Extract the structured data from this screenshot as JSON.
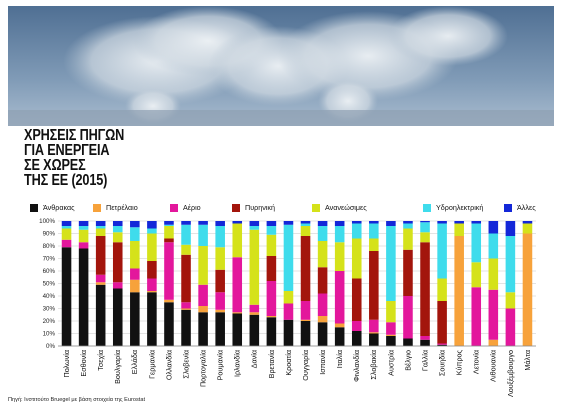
{
  "title": {
    "lines": [
      "ΧΡΗΣΕΙΣ ΠΗΓΩΝ",
      "ΓΙΑ ΕΝΕΡΓΕΙΑ",
      "ΣΕ ΧΩΡΕΣ",
      "ΤΗΣ ΕΕ (2015)"
    ]
  },
  "source": "Πηγή: Ινστιτούτο Bruegel με βάση στοιχεία της Eurostat",
  "photo": {
    "subject": "power-plant-smoke-stacks",
    "sky_color": "#5f7f9f"
  },
  "chart_data": {
    "type": "bar",
    "stacked": true,
    "ylim": [
      0,
      100
    ],
    "y_ticks": [
      "0%",
      "10%",
      "20%",
      "30%",
      "40%",
      "50%",
      "60%",
      "70%",
      "80%",
      "90%",
      "100%"
    ],
    "grid": true,
    "legend_position": "top",
    "categories": [
      "Πολωνία",
      "Εσθονία",
      "Τσεχία",
      "Βουλγαρία",
      "Ελλάδα",
      "Γερμανία",
      "Ολλανδία",
      "Σλοβενία",
      "Πορτογαλία",
      "Ρουμανία",
      "Ιρλανδία",
      "Δανία",
      "Βρετανία",
      "Κροατία",
      "Ουγγαρία",
      "Ισπανία",
      "Ιταλία",
      "Φινλανδία",
      "Σλοβακία",
      "Αυστρία",
      "Βέλγιο",
      "Γαλλία",
      "Σουηδία",
      "Κύπρος",
      "Λετονία",
      "Λιθουανία",
      "Λουξέμβουργο",
      "Μάλτα"
    ],
    "series": [
      {
        "name": "Άνθρακας",
        "color": "#111111",
        "values": [
          79,
          78,
          49,
          46,
          43,
          43,
          35,
          29,
          27,
          27,
          26,
          25,
          23,
          21,
          20,
          19,
          15,
          12,
          10,
          8,
          6,
          5,
          1,
          0,
          0,
          0,
          0,
          0
        ]
      },
      {
        "name": "Πετρέλαιο",
        "color": "#f7a23b",
        "values": [
          0,
          0,
          2,
          0,
          10,
          1,
          2,
          1,
          5,
          2,
          1,
          2,
          1,
          0,
          1,
          5,
          3,
          0,
          1,
          1,
          0,
          0,
          0,
          88,
          0,
          5,
          0,
          90
        ]
      },
      {
        "name": "Αέριο",
        "color": "#e3179c",
        "values": [
          6,
          5,
          6,
          5,
          9,
          10,
          46,
          5,
          17,
          14,
          44,
          6,
          28,
          13,
          15,
          18,
          42,
          8,
          10,
          10,
          34,
          3,
          1,
          0,
          47,
          40,
          30,
          0
        ]
      },
      {
        "name": "Πυρηνική",
        "color": "#a3150c",
        "values": [
          0,
          0,
          31,
          32,
          0,
          14,
          3,
          38,
          0,
          18,
          0,
          0,
          20,
          0,
          52,
          21,
          0,
          34,
          55,
          0,
          37,
          75,
          34,
          0,
          0,
          0,
          0,
          0
        ]
      },
      {
        "name": "Ανανεώσιμες",
        "color": "#d5e21a",
        "values": [
          9,
          10,
          6,
          8,
          22,
          22,
          10,
          8,
          31,
          18,
          27,
          60,
          17,
          10,
          8,
          21,
          23,
          32,
          10,
          17,
          17,
          8,
          18,
          10,
          20,
          25,
          13,
          8
        ]
      },
      {
        "name": "Υδροηλεκτρική",
        "color": "#3fdcec",
        "values": [
          2,
          3,
          2,
          5,
          11,
          4,
          1,
          16,
          17,
          17,
          0,
          3,
          7,
          53,
          2,
          12,
          13,
          12,
          12,
          60,
          4,
          8,
          44,
          0,
          31,
          20,
          45,
          0
        ]
      },
      {
        "name": "Άλλες",
        "color": "#1327d8",
        "values": [
          4,
          4,
          4,
          4,
          5,
          6,
          3,
          3,
          3,
          4,
          2,
          4,
          4,
          3,
          2,
          4,
          4,
          2,
          2,
          4,
          2,
          1,
          2,
          2,
          2,
          10,
          12,
          2
        ]
      }
    ]
  }
}
